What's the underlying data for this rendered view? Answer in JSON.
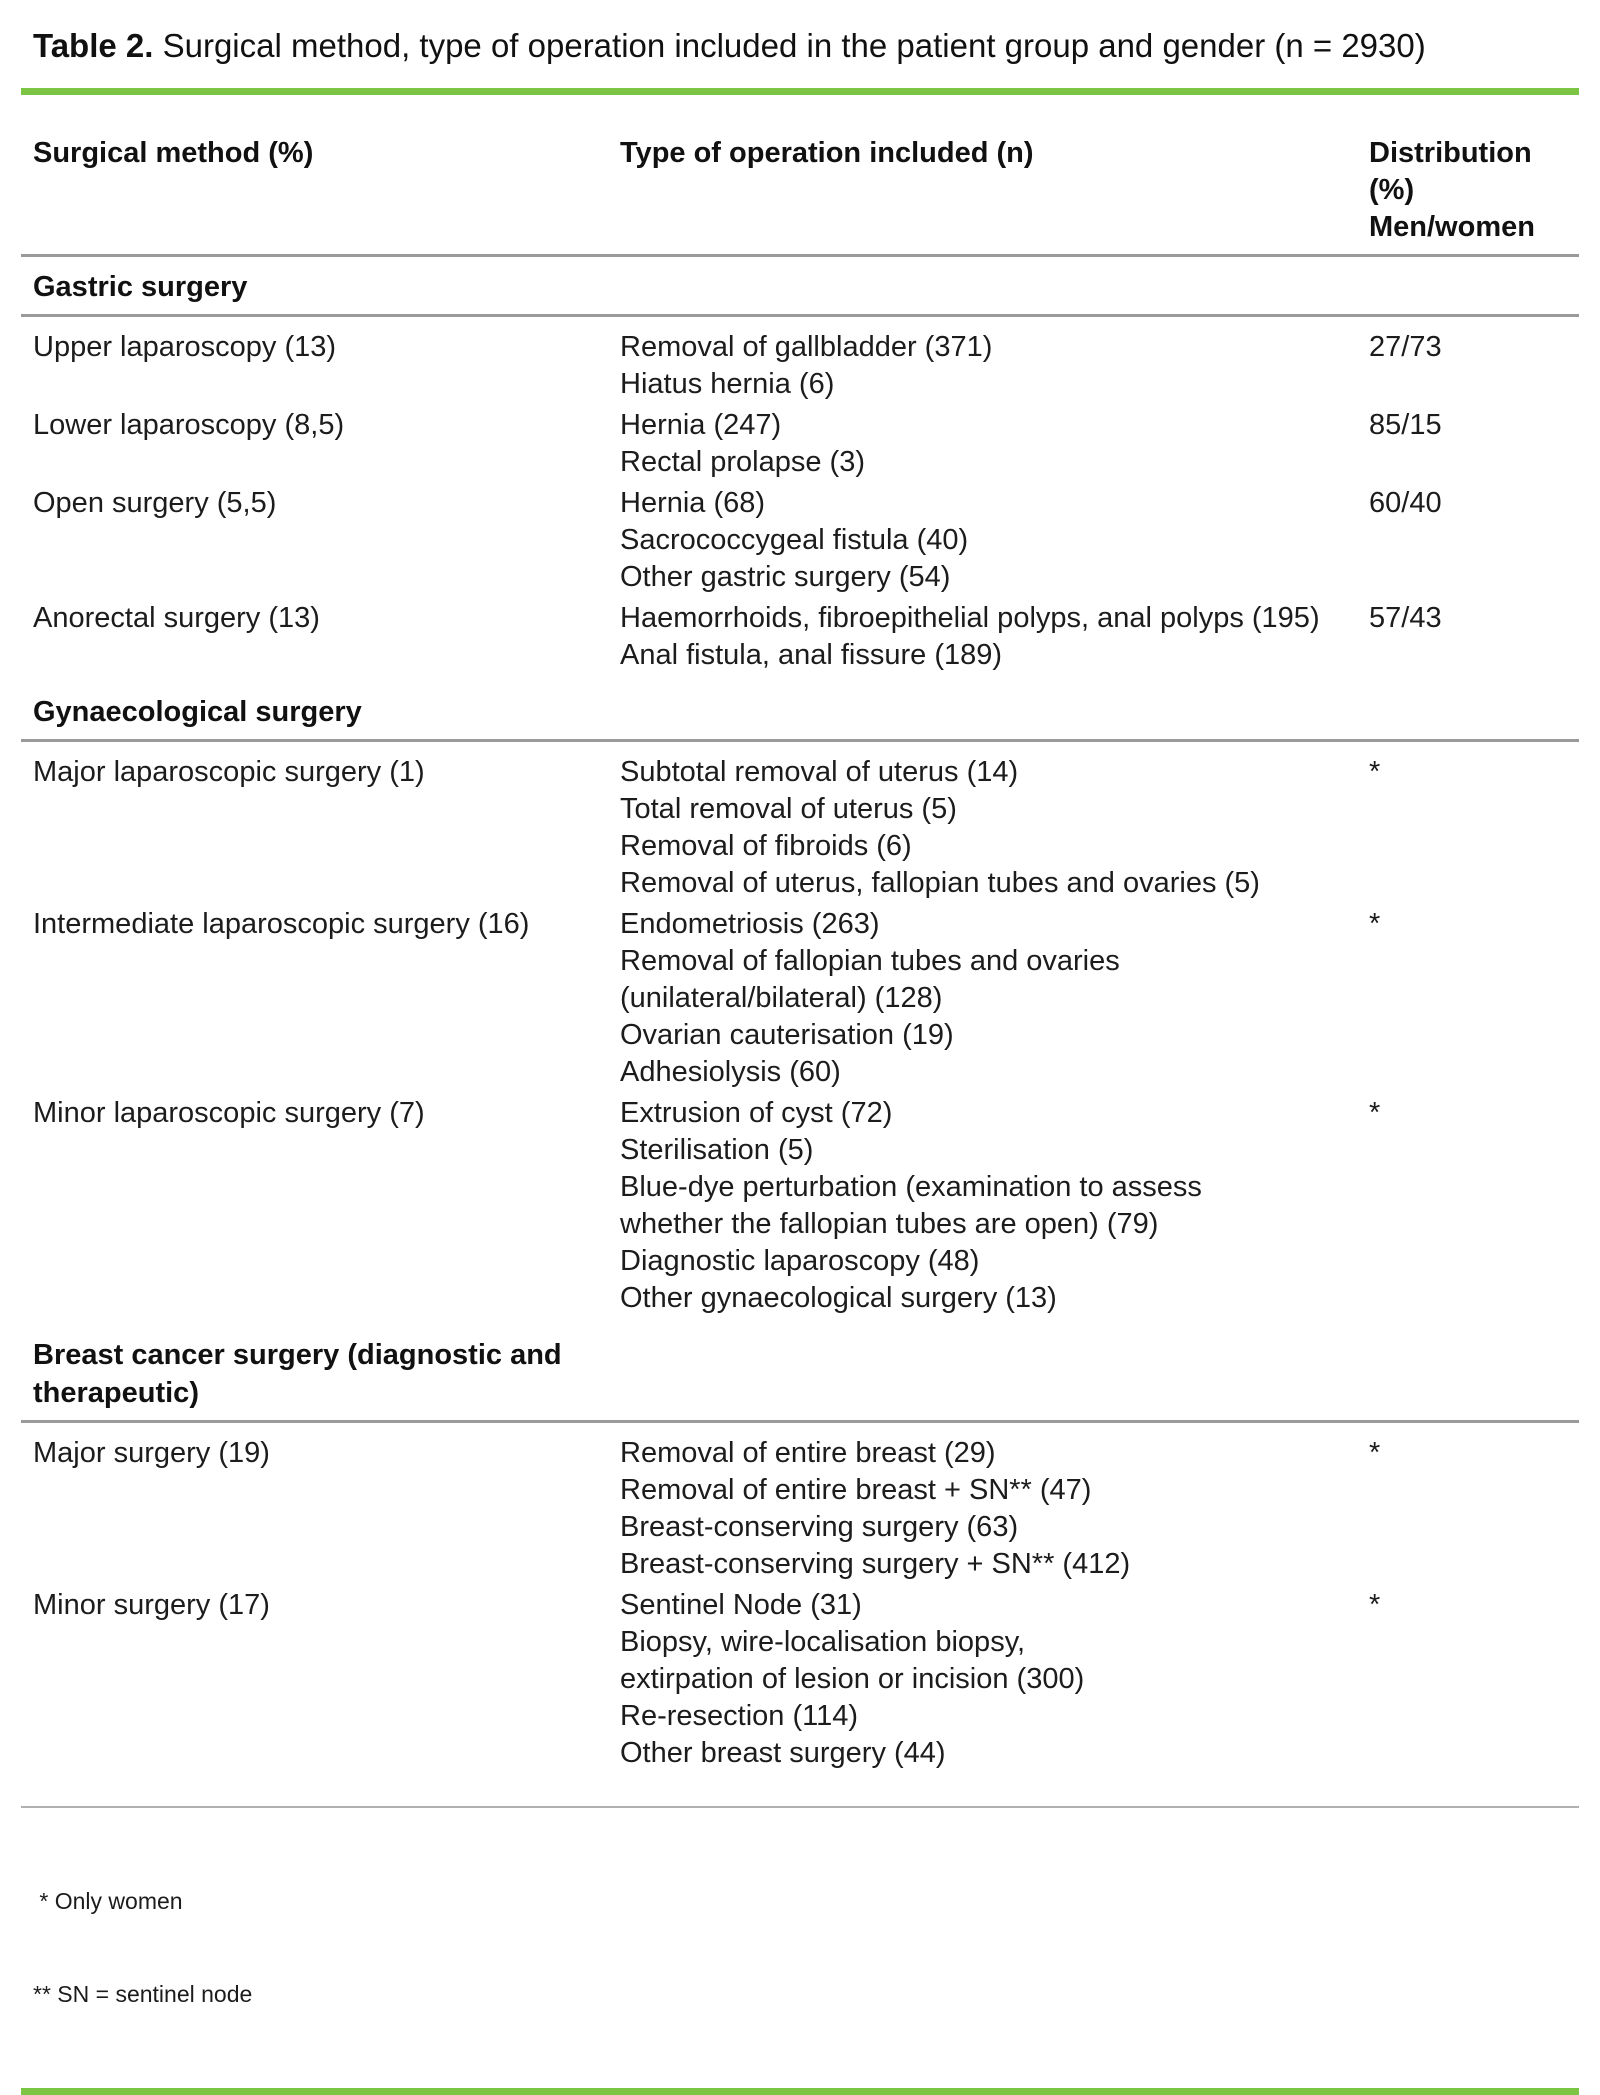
{
  "title": {
    "label": "Table 2.",
    "caption": " Surgical method, type of operation included in the patient group and gender (n = 2930)"
  },
  "colors": {
    "accent_green": "#7cc544",
    "rule_gray": "#9a9a9a",
    "text": "#1c1c1c"
  },
  "columns": [
    "Surgical method (%)",
    "Type of operation included (n)",
    "Distribution\n(%)\nMen/women"
  ],
  "sections": [
    {
      "heading": "Gastric surgery",
      "rows": [
        {
          "method": "Upper laparoscopy (13)",
          "operations": "Removal of gallbladder (371)\nHiatus hernia (6)",
          "distribution": "27/73"
        },
        {
          "method": "Lower laparoscopy (8,5)",
          "operations": "Hernia (247)\nRectal prolapse (3)",
          "distribution": "85/15"
        },
        {
          "method": "Open surgery (5,5)",
          "operations": "Hernia (68)\nSacrococcygeal fistula (40)\nOther gastric surgery (54)",
          "distribution": "60/40"
        },
        {
          "method": "Anorectal surgery (13)",
          "operations": "Haemorrhoids, fibroepithelial polyps, anal polyps (195)\nAnal fistula, anal fissure (189)",
          "distribution": "57/43"
        }
      ]
    },
    {
      "heading": "Gynaecological surgery",
      "rows": [
        {
          "method": "Major laparoscopic surgery (1)",
          "operations": "Subtotal removal of uterus (14)\nTotal removal of uterus (5)\nRemoval of fibroids (6)\nRemoval of uterus, fallopian tubes and ovaries (5)",
          "distribution": "*"
        },
        {
          "method": "Intermediate laparoscopic surgery (16)",
          "operations": "Endometriosis (263)\nRemoval of fallopian tubes and ovaries\n(unilateral/bilateral) (128)\nOvarian cauterisation (19)\nAdhesiolysis (60)",
          "distribution": "*"
        },
        {
          "method": "Minor laparoscopic surgery (7)",
          "operations": "Extrusion of cyst (72)\nSterilisation (5)\nBlue-dye perturbation (examination to assess\nwhether the fallopian tubes are open) (79)\nDiagnostic laparoscopy (48)\nOther gynaecological surgery (13)",
          "distribution": "*"
        }
      ]
    },
    {
      "heading": "Breast cancer surgery (diagnostic and\ntherapeutic)",
      "rows": [
        {
          "method": "Major surgery (19)",
          "operations": "Removal of entire breast (29)\nRemoval of entire breast + SN** (47)\nBreast-conserving surgery (63)\nBreast-conserving surgery + SN** (412)",
          "distribution": "*"
        },
        {
          "method": "Minor surgery (17)",
          "operations": "Sentinel Node (31)\nBiopsy, wire-localisation biopsy,\nextirpation of lesion or incision (300)\nRe-resection (114)\nOther breast surgery (44)",
          "distribution": "*"
        }
      ]
    }
  ],
  "footnotes": {
    "only_women": " * Only women",
    "sn_definition": "** SN = sentinel node"
  }
}
